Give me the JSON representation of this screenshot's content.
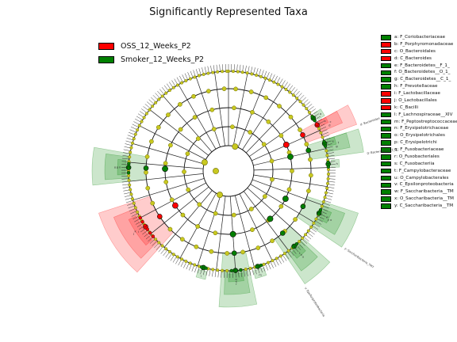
{
  "title": "Significantly Represented Taxa",
  "colors": {
    "oss": "#ff0000",
    "smoker": "#008000",
    "node": "#c8c820",
    "node_edge": "#6b6b00"
  },
  "legend": [
    {
      "label": "OSS_12_Weeks_P2",
      "color": "#ff0000"
    },
    {
      "label": "Smoker_12_Weeks_P2",
      "color": "#008000"
    }
  ],
  "taxa": [
    {
      "label": "a: F_Coriobacteriaceae",
      "color": "#008000"
    },
    {
      "label": "b: F_Porphyromonadaceae",
      "color": "#ff0000"
    },
    {
      "label": "c: O_Bacteroidales",
      "color": "#ff0000"
    },
    {
      "label": "d: C_Bacteroides",
      "color": "#ff0000"
    },
    {
      "label": "e: F_Bacteroidetes__F_1_",
      "color": "#008000"
    },
    {
      "label": "f: O_Bacteroidetes__O_1_",
      "color": "#008000"
    },
    {
      "label": "g: C_Bacteroidetes__C_1_",
      "color": "#008000"
    },
    {
      "label": "h: F_Prevotellaceae",
      "color": "#008000"
    },
    {
      "label": "i: F_Lactobacillaceae",
      "color": "#ff0000"
    },
    {
      "label": "j: O_Lactobacillales",
      "color": "#ff0000"
    },
    {
      "label": "k: C_Bacilli",
      "color": "#ff0000"
    },
    {
      "label": "l: F_Lachnospiraceae__XIV",
      "color": "#008000"
    },
    {
      "label": "m: F_Peptostreptococcaceae",
      "color": "#008000"
    },
    {
      "label": "n: F_Erysipelotrichaceae",
      "color": "#008000"
    },
    {
      "label": "o: O_Erysipelotrichales",
      "color": "#008000"
    },
    {
      "label": "p: C_Erysipelotrichi",
      "color": "#008000"
    },
    {
      "label": "q: F_Fusobacteriaceae",
      "color": "#008000"
    },
    {
      "label": "r: O_Fusobacteriales",
      "color": "#008000"
    },
    {
      "label": "s: C_Fusobacteriia",
      "color": "#008000"
    },
    {
      "label": "t: F_Campylobacteraceae",
      "color": "#008000"
    },
    {
      "label": "u: O_Campylobacterales",
      "color": "#008000"
    },
    {
      "label": "v: C_Epsilonproteobacteria",
      "color": "#008000"
    },
    {
      "label": "w: F_Saccharibacteria__TM",
      "color": "#008000"
    },
    {
      "label": "x: O_Saccharibacteria__TM",
      "color": "#008000"
    },
    {
      "label": "y: C_Saccharibacteria__TM",
      "color": "#008000"
    }
  ],
  "sectors": [
    {
      "letter": "a",
      "group": "smoker",
      "start": 56,
      "end": 60,
      "level": 4
    },
    {
      "letter": "b",
      "group": "oss",
      "start": 61,
      "end": 64,
      "level": 4
    },
    {
      "letter": "c",
      "group": "oss",
      "start": 61,
      "end": 67,
      "level": 3
    },
    {
      "letter": "d",
      "group": "oss",
      "start": 61,
      "end": 70,
      "level": 2
    },
    {
      "letter": "e",
      "group": "smoker",
      "start": 72,
      "end": 76,
      "level": 4
    },
    {
      "letter": "f",
      "group": "smoker",
      "start": 72,
      "end": 79,
      "level": 3
    },
    {
      "letter": "g",
      "group": "smoker",
      "start": 72,
      "end": 82,
      "level": 2
    },
    {
      "letter": "h",
      "group": "smoker",
      "start": 84,
      "end": 88,
      "level": 4
    },
    {
      "letter": "i",
      "group": "oss",
      "start": 228,
      "end": 244,
      "level": 4
    },
    {
      "letter": "j",
      "group": "oss",
      "start": 225,
      "end": 248,
      "level": 3
    },
    {
      "letter": "k",
      "group": "oss",
      "start": 222,
      "end": 252,
      "level": 2
    },
    {
      "letter": "l",
      "group": "smoker",
      "start": 192,
      "end": 197,
      "level": 4
    },
    {
      "letter": "m",
      "group": "smoker",
      "start": 160,
      "end": 166,
      "level": 4
    },
    {
      "letter": "n",
      "group": "smoker",
      "start": 268,
      "end": 276,
      "level": 4
    },
    {
      "letter": "o",
      "group": "smoker",
      "start": 266,
      "end": 278,
      "level": 3
    },
    {
      "letter": "p",
      "group": "smoker",
      "start": 264,
      "end": 280,
      "level": 2
    },
    {
      "letter": "q",
      "group": "smoker",
      "start": 172,
      "end": 180,
      "level": 4
    },
    {
      "letter": "r",
      "group": "smoker",
      "start": 170,
      "end": 182,
      "level": 3
    },
    {
      "letter": "s",
      "group": "smoker",
      "start": 168,
      "end": 184,
      "level": 2
    },
    {
      "letter": "t",
      "group": "smoker",
      "start": 136,
      "end": 142,
      "level": 4
    },
    {
      "letter": "u",
      "group": "smoker",
      "start": 134,
      "end": 144,
      "level": 3
    },
    {
      "letter": "v",
      "group": "smoker",
      "start": 132,
      "end": 146,
      "level": 2
    },
    {
      "letter": "w",
      "group": "smoker",
      "start": 112,
      "end": 118,
      "level": 4
    },
    {
      "letter": "x",
      "group": "smoker",
      "start": 110,
      "end": 121,
      "level": 3
    },
    {
      "letter": "y",
      "group": "smoker",
      "start": 108,
      "end": 124,
      "level": 2
    }
  ],
  "outer_labels": [
    {
      "text": "d: Bacteroides",
      "angle": 71
    },
    {
      "text": "g: Bacteroidetes_C_1_",
      "angle": 83
    },
    {
      "text": "y: Saccharibacteria_TM7",
      "angle": 124
    },
    {
      "text": "v: Epsilonproteobacteria",
      "angle": 147
    }
  ]
}
